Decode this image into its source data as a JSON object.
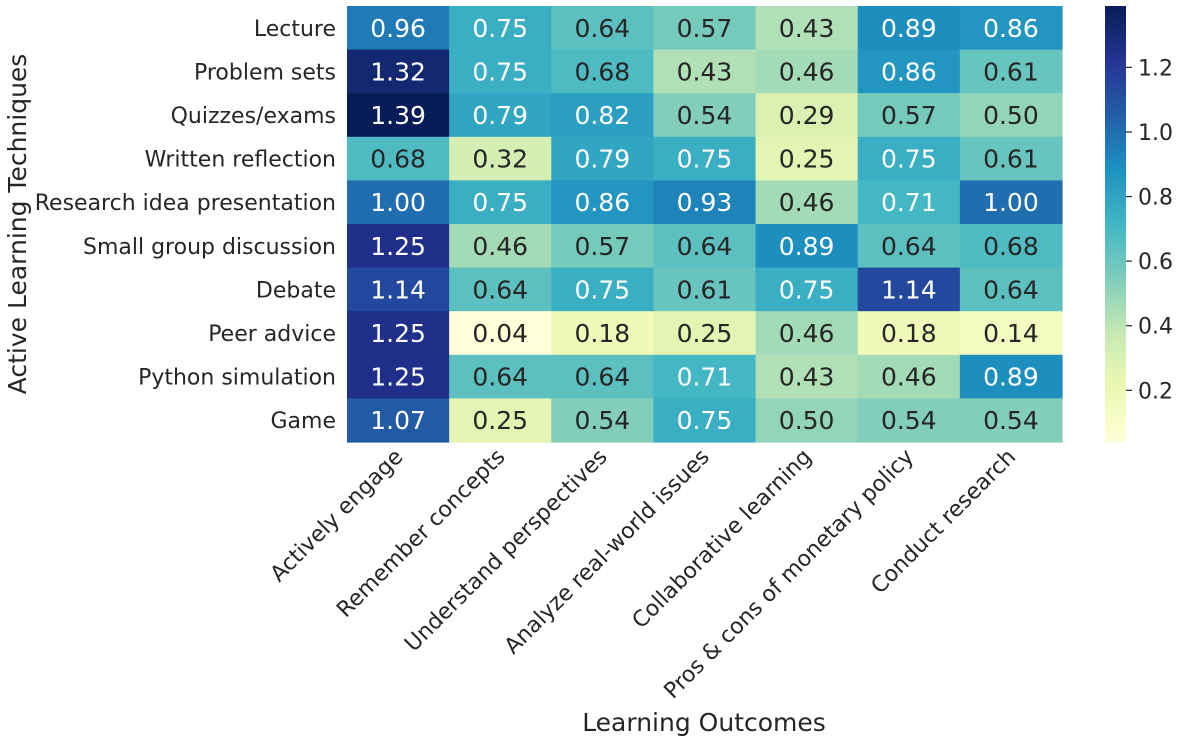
{
  "chart_data": {
    "type": "heatmap",
    "title": "",
    "xlabel": "Learning Outcomes",
    "ylabel": "Active Learning Techniques",
    "columns": [
      "Actively engage",
      "Remember concepts",
      "Understand perspectives",
      "Analyze real-world issues",
      "Collaborative learning",
      "Pros & cons of monetary policy",
      "Conduct research"
    ],
    "rows": [
      "Lecture",
      "Problem sets",
      "Quizzes/exams",
      "Written reflection",
      "Research idea presentation",
      "Small group discussion",
      "Debate",
      "Peer advice",
      "Python simulation",
      "Game"
    ],
    "values": [
      [
        0.96,
        0.75,
        0.64,
        0.57,
        0.43,
        0.89,
        0.86
      ],
      [
        1.32,
        0.75,
        0.68,
        0.43,
        0.46,
        0.86,
        0.61
      ],
      [
        1.39,
        0.79,
        0.82,
        0.54,
        0.29,
        0.57,
        0.5
      ],
      [
        0.68,
        0.32,
        0.79,
        0.75,
        0.25,
        0.75,
        0.61
      ],
      [
        1.0,
        0.75,
        0.86,
        0.93,
        0.46,
        0.71,
        1.0
      ],
      [
        1.25,
        0.46,
        0.57,
        0.64,
        0.89,
        0.64,
        0.68
      ],
      [
        1.14,
        0.64,
        0.75,
        0.61,
        0.75,
        1.14,
        0.64
      ],
      [
        1.25,
        0.04,
        0.18,
        0.25,
        0.46,
        0.18,
        0.14
      ],
      [
        1.25,
        0.64,
        0.64,
        0.71,
        0.43,
        0.46,
        0.89
      ],
      [
        1.07,
        0.25,
        0.54,
        0.75,
        0.5,
        0.54,
        0.54
      ]
    ],
    "vmin": 0.04,
    "vmax": 1.39,
    "colormap": "YlGnBu",
    "colorbar_ticks": [
      0.2,
      0.4,
      0.6,
      0.8,
      1.0,
      1.2
    ],
    "colorbar_tick_labels": [
      "0.2",
      "0.4",
      "0.6",
      "0.8",
      "1.0",
      "1.2"
    ],
    "value_format": "0.00"
  },
  "colors": {
    "text_dark": "#262626",
    "text_light": "#ffffff",
    "tick": "#262626"
  }
}
